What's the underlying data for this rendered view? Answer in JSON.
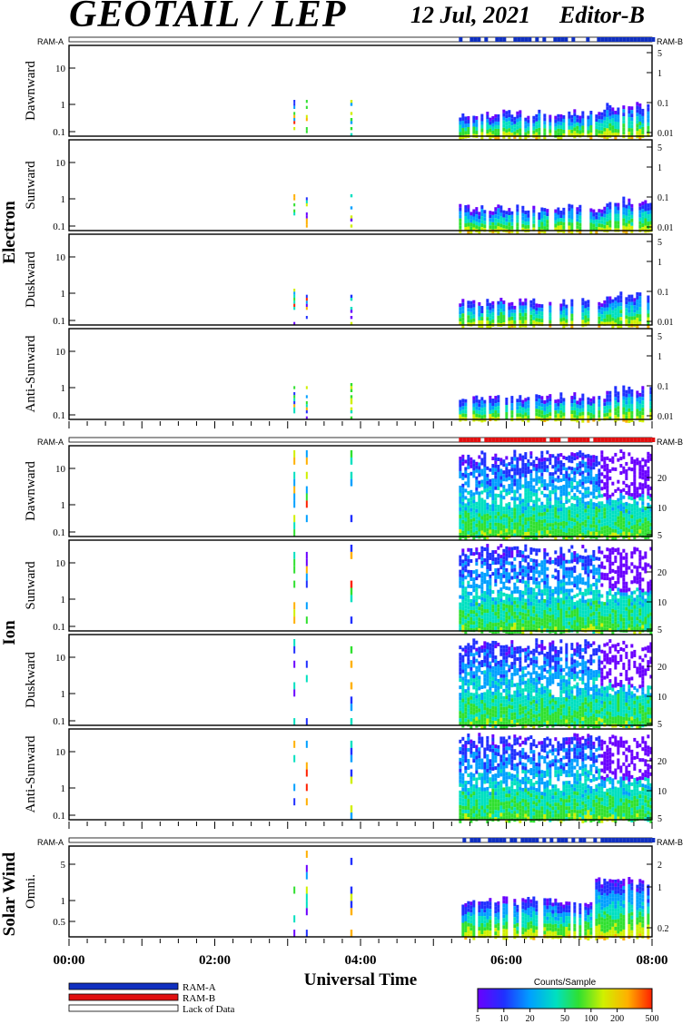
{
  "header": {
    "title": "GEOTAIL / LEP",
    "date": "12 Jul, 2021",
    "editor": "Editor-B"
  },
  "ram_labels": {
    "left": "RAM-A",
    "right": "RAM-B"
  },
  "groups": [
    {
      "name": "Electron",
      "panels": [
        "Dawnward",
        "Sunward",
        "Duskward",
        "Anti-Sunward"
      ]
    },
    {
      "name": "Ion",
      "panels": [
        "Dawnward",
        "Sunward",
        "Duskward",
        "Anti-Sunward"
      ]
    },
    {
      "name": "Solar Wind",
      "panels": [
        "Omni."
      ]
    }
  ],
  "x_axis": {
    "label": "Universal Time",
    "ticks": [
      "00:00",
      "02:00",
      "04:00",
      "06:00",
      "08:00"
    ],
    "range_hours": [
      0,
      8
    ]
  },
  "legend": {
    "items": [
      {
        "label": "RAM-A",
        "color": "#1030c0"
      },
      {
        "label": "RAM-B",
        "color": "#e01010"
      },
      {
        "label": "Lack of Data",
        "color": "#ffffff"
      }
    ]
  },
  "colorbar": {
    "title": "Counts/Sample",
    "ticks": [
      "5",
      "10",
      "20",
      "50",
      "100",
      "200",
      "500"
    ],
    "colors": [
      "#6a00ff",
      "#2030ff",
      "#00a0ff",
      "#00e0c0",
      "#30e030",
      "#d0f000",
      "#ffb000",
      "#ff2000"
    ]
  },
  "chart_data": {
    "type": "heatmap",
    "x_unit": "hours UT",
    "electron_left_ticks": [
      "10",
      "1",
      "0.1"
    ],
    "electron_right_ticks": [
      "5",
      "1",
      "0.1",
      "0.01"
    ],
    "ion_left_ticks": [
      "10",
      "1",
      "0.1"
    ],
    "ion_right_ticks": [
      "20",
      "10",
      "5"
    ],
    "sw_left_ticks": [
      "5",
      "1",
      "0.5"
    ],
    "sw_right_ticks": [
      "2",
      "1",
      "0.2"
    ],
    "data_intervals_hours": [
      [
        3.08,
        3.12
      ],
      [
        3.25,
        3.28
      ],
      [
        3.85,
        3.9
      ],
      [
        5.35,
        8.0
      ]
    ],
    "ram_b_start_hour": 5.35
  }
}
